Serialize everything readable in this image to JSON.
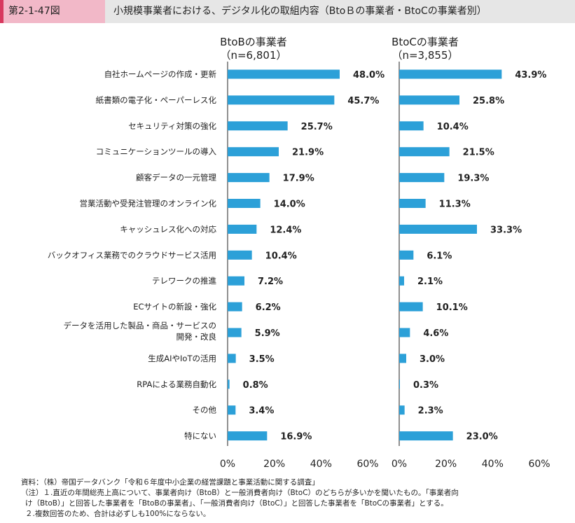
{
  "header": {
    "figure_number": "第2-1-47図",
    "title": "小規模事業者における、デジタル化の取組内容（BtoＢの事業者・BtoCの事業者別）"
  },
  "colors": {
    "bar": "#2ca0d8",
    "accent": "#d8385e"
  },
  "chart_data": {
    "type": "bar",
    "orientation": "horizontal",
    "categories": [
      "自社ホームページの作成・更新",
      "紙書類の電子化・ペーパーレス化",
      "セキュリティ対策の強化",
      "コミュニケーションツールの導入",
      "顧客データの一元管理",
      "営業活動や受発注管理のオンライン化",
      "キャッシュレス化への対応",
      "バックオフィス業務でのクラウドサービス活用",
      "テレワークの推進",
      "ECサイトの新設・強化",
      [
        "データを活用した製品・商品・サービスの",
        "開発・改良"
      ],
      "生成AIやIoTの活用",
      "RPAによる業務自動化",
      "その他",
      "特にない"
    ],
    "panels": [
      {
        "title": "BtoBの事業者",
        "subtitle": "（n=6,801）",
        "values": [
          48.0,
          45.7,
          25.7,
          21.9,
          17.9,
          14.0,
          12.4,
          10.4,
          7.2,
          6.2,
          5.9,
          3.5,
          0.8,
          3.4,
          16.9
        ],
        "value_labels": [
          "48.0%",
          "45.7%",
          "25.7%",
          "21.9%",
          "17.9%",
          "14.0%",
          "12.4%",
          "10.4%",
          "7.2%",
          "6.2%",
          "5.9%",
          "3.5%",
          "0.8%",
          "3.4%",
          "16.9%"
        ]
      },
      {
        "title": "BtoCの事業者",
        "subtitle": "（n=3,855）",
        "values": [
          43.9,
          25.8,
          10.4,
          21.5,
          19.3,
          11.3,
          33.3,
          6.1,
          2.1,
          10.1,
          4.6,
          3.0,
          0.3,
          2.3,
          23.0
        ],
        "value_labels": [
          "43.9%",
          "25.8%",
          "10.4%",
          "21.5%",
          "19.3%",
          "11.3%",
          "33.3%",
          "6.1%",
          "2.1%",
          "10.1%",
          "4.6%",
          "3.0%",
          "0.3%",
          "2.3%",
          "23.0%"
        ]
      }
    ],
    "xlim": [
      0,
      60
    ],
    "x_ticks": [
      0,
      20,
      40,
      60
    ],
    "x_tick_labels": [
      "0%",
      "20%",
      "40%",
      "60%"
    ],
    "grid": false,
    "legend": "none"
  },
  "notes": {
    "source": "資料：（株）帝国データバンク「令和６年度中小企業の経営課題と事業活動に関する調査」",
    "note1a": "（注）１.直近の年間総売上高について、事業者向け（BtoB）と一般消費者向け（BtoC）のどちらが多いかを聞いたもの。「事業者向",
    "note1b": "け（BtoB）」と回答した事業者を「BtoBの事業者」、「一般消費者向け（BtoC）」と回答した事業者を「BtoCの事業者」とする。",
    "note2": "２.複数回答のため、合計は必ずしも100%にならない。"
  }
}
